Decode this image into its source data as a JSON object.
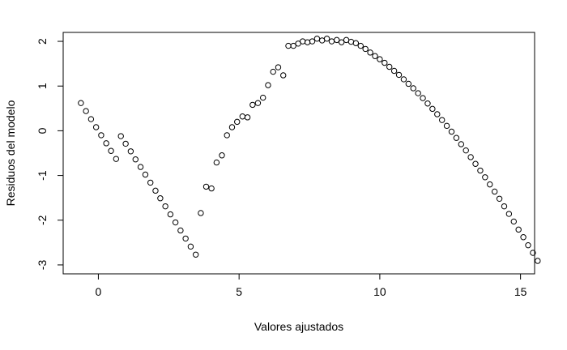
{
  "chart_data": {
    "type": "scatter",
    "title": "",
    "xlabel": "Valores ajustados",
    "ylabel": "Residuos del modelo",
    "xlim": [
      -1.25,
      15.5
    ],
    "ylim": [
      -3.2,
      2.2
    ],
    "xticks": [
      0,
      5,
      10,
      15
    ],
    "yticks": [
      -3,
      -2,
      -1,
      0,
      1,
      2
    ],
    "xtick_labels": [
      "0",
      "5",
      "10",
      "15"
    ],
    "ytick_labels": [
      "-3",
      "-2",
      "-1",
      "0",
      "1",
      "2"
    ],
    "grid": false,
    "legend": "none",
    "marker": "open-circle",
    "series": [
      {
        "points": [
          [
            -0.62,
            0.62
          ],
          [
            -0.44,
            0.44
          ],
          [
            -0.26,
            0.26
          ],
          [
            -0.08,
            0.08
          ],
          [
            0.1,
            -0.1
          ],
          [
            0.28,
            -0.28
          ],
          [
            0.45,
            -0.45
          ],
          [
            0.63,
            -0.63
          ],
          [
            0.8,
            -0.12
          ],
          [
            0.97,
            -0.29
          ],
          [
            1.15,
            -0.46
          ],
          [
            1.32,
            -0.64
          ],
          [
            1.5,
            -0.81
          ],
          [
            1.67,
            -0.98
          ],
          [
            1.85,
            -1.16
          ],
          [
            2.03,
            -1.34
          ],
          [
            2.2,
            -1.51
          ],
          [
            2.38,
            -1.69
          ],
          [
            2.56,
            -1.87
          ],
          [
            2.74,
            -2.05
          ],
          [
            2.92,
            -2.23
          ],
          [
            3.1,
            -2.41
          ],
          [
            3.28,
            -2.59
          ],
          [
            3.46,
            -2.77
          ],
          [
            3.64,
            -1.84
          ],
          [
            3.83,
            -1.25
          ],
          [
            4.02,
            -1.29
          ],
          [
            4.2,
            -0.71
          ],
          [
            4.39,
            -0.55
          ],
          [
            4.57,
            -0.1
          ],
          [
            4.75,
            0.08
          ],
          [
            4.93,
            0.2
          ],
          [
            5.12,
            0.32
          ],
          [
            5.3,
            0.3
          ],
          [
            5.48,
            0.58
          ],
          [
            5.67,
            0.62
          ],
          [
            5.85,
            0.74
          ],
          [
            6.03,
            1.02
          ],
          [
            6.21,
            1.32
          ],
          [
            6.39,
            1.42
          ],
          [
            6.57,
            1.24
          ],
          [
            6.75,
            1.9
          ],
          [
            6.93,
            1.9
          ],
          [
            7.1,
            1.95
          ],
          [
            7.26,
            2.0
          ],
          [
            7.43,
            1.98
          ],
          [
            7.6,
            2.0
          ],
          [
            7.77,
            2.06
          ],
          [
            7.95,
            2.02
          ],
          [
            8.12,
            2.06
          ],
          [
            8.29,
            2.0
          ],
          [
            8.47,
            2.03
          ],
          [
            8.64,
            1.98
          ],
          [
            8.81,
            2.03
          ],
          [
            8.98,
            1.99
          ],
          [
            9.15,
            1.96
          ],
          [
            9.32,
            1.9
          ],
          [
            9.49,
            1.83
          ],
          [
            9.66,
            1.75
          ],
          [
            9.83,
            1.67
          ],
          [
            10.0,
            1.6
          ],
          [
            10.17,
            1.52
          ],
          [
            10.34,
            1.43
          ],
          [
            10.51,
            1.34
          ],
          [
            10.68,
            1.25
          ],
          [
            10.85,
            1.15
          ],
          [
            11.02,
            1.05
          ],
          [
            11.19,
            0.95
          ],
          [
            11.36,
            0.84
          ],
          [
            11.53,
            0.73
          ],
          [
            11.7,
            0.61
          ],
          [
            11.87,
            0.49
          ],
          [
            12.04,
            0.37
          ],
          [
            12.21,
            0.24
          ],
          [
            12.38,
            0.11
          ],
          [
            12.55,
            -0.02
          ],
          [
            12.72,
            -0.16
          ],
          [
            12.89,
            -0.3
          ],
          [
            13.06,
            -0.44
          ],
          [
            13.23,
            -0.59
          ],
          [
            13.4,
            -0.74
          ],
          [
            13.57,
            -0.89
          ],
          [
            13.74,
            -1.04
          ],
          [
            13.91,
            -1.2
          ],
          [
            14.08,
            -1.36
          ],
          [
            14.25,
            -1.52
          ],
          [
            14.42,
            -1.69
          ],
          [
            14.59,
            -1.86
          ],
          [
            14.76,
            -2.03
          ],
          [
            14.93,
            -2.21
          ],
          [
            15.1,
            -2.38
          ],
          [
            15.27,
            -2.56
          ],
          [
            15.44,
            -2.73
          ],
          [
            15.61,
            -2.91
          ]
        ]
      }
    ]
  }
}
